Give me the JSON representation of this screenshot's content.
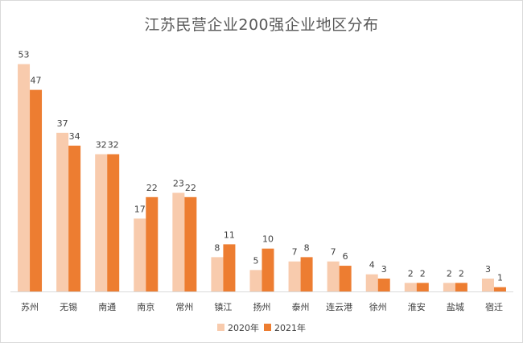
{
  "chart_data": {
    "type": "bar",
    "title": "江苏民营企业200强企业地区分布",
    "categories": [
      "苏州",
      "无锡",
      "南通",
      "南京",
      "常州",
      "镇江",
      "扬州",
      "泰州",
      "连云港",
      "徐州",
      "淮安",
      "盐城",
      "宿迁"
    ],
    "series": [
      {
        "name": "2020年",
        "color": "#F8CBAD",
        "values": [
          53,
          37,
          32,
          17,
          23,
          8,
          5,
          7,
          7,
          4,
          2,
          2,
          3
        ]
      },
      {
        "name": "2021年",
        "color": "#ED7D31",
        "values": [
          47,
          34,
          32,
          22,
          22,
          11,
          10,
          8,
          6,
          3,
          2,
          2,
          1
        ]
      }
    ],
    "ylim": [
      0,
      55
    ],
    "xlabel": "",
    "ylabel": "",
    "grid": false,
    "legend": "bottom"
  }
}
